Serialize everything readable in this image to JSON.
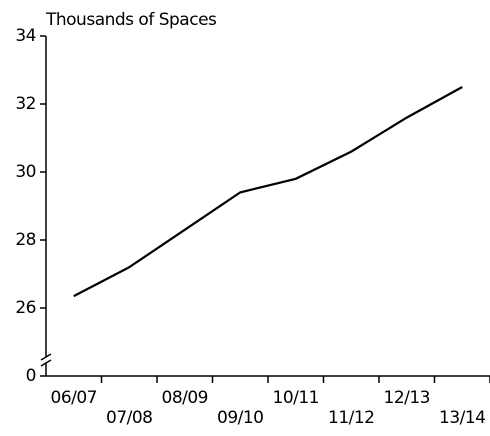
{
  "chart_data": {
    "type": "line",
    "y_label": "Thousands of Spaces",
    "categories": [
      "06/07",
      "07/08",
      "08/09",
      "09/10",
      "10/11",
      "11/12",
      "12/13",
      "13/14"
    ],
    "values": [
      26.35,
      27.2,
      28.3,
      29.4,
      29.8,
      30.6,
      31.6,
      32.5
    ],
    "color": "#000000",
    "ylim": [
      0,
      34
    ],
    "yticks": [
      0,
      26,
      28,
      30,
      32,
      34
    ],
    "y_axis_break": true,
    "grid": false
  }
}
